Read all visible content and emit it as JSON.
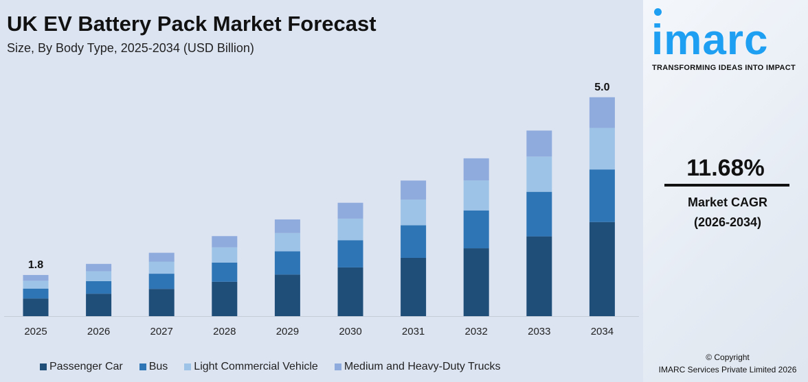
{
  "chart_data": {
    "type": "bar",
    "stacked": true,
    "title": "UK EV Battery Pack Market Forecast",
    "subtitle": "Size, By Body Type, 2025-2034 (USD Billion)",
    "categories": [
      "2025",
      "2026",
      "2027",
      "2028",
      "2029",
      "2030",
      "2031",
      "2032",
      "2033",
      "2034"
    ],
    "totals": [
      1.8,
      2.0,
      2.2,
      2.5,
      2.8,
      3.1,
      3.5,
      3.9,
      4.4,
      5.0
    ],
    "total_labels": {
      "2025": "1.8",
      "2034": "5.0"
    },
    "series": [
      {
        "name": "Passenger Car",
        "color": "#1f4e79",
        "share": 0.43
      },
      {
        "name": "Bus",
        "color": "#2e75b6",
        "share": 0.24
      },
      {
        "name": "Light Commercial Vehicle",
        "color": "#9dc3e6",
        "share": 0.19
      },
      {
        "name": "Medium and Heavy-Duty Trucks",
        "color": "#8faadc",
        "share": 0.14
      }
    ],
    "legend_position": "bottom",
    "grid": false
  },
  "side": {
    "logo": "imarc",
    "tagline": "TRANSFORMING IDEAS INTO IMPACT",
    "cagr_value": "11.68%",
    "cagr_label": "Market CAGR",
    "cagr_period": "(2026-2034)",
    "copyright": "© Copyright",
    "company": "IMARC Services Private Limited 2026"
  }
}
